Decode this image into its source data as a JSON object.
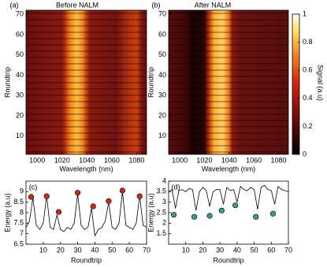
{
  "chart_data": [
    {
      "type": "heatmap",
      "label": "(a)",
      "title": "Before NALM",
      "x_label": "Wavelength (nm)",
      "y_label": "Roundtrip",
      "xlim": [
        991,
        1088
      ],
      "xticks": [
        1000,
        1020,
        1040,
        1060,
        1080
      ],
      "ylim": [
        1,
        72
      ],
      "yticks": [
        10,
        20,
        30,
        40,
        50,
        60,
        70
      ]
    },
    {
      "type": "heatmap",
      "label": "(b)",
      "title": "After NALM",
      "x_label": "Wavelength (nm)",
      "y_label": "Roundtrip",
      "xlim": [
        991,
        1088
      ],
      "xticks": [
        1000,
        1020,
        1040,
        1060,
        1080
      ],
      "ylim": [
        1,
        72
      ],
      "yticks": [
        10,
        20,
        30,
        40,
        50,
        60,
        70
      ],
      "colorbar": {
        "label": "Signal (a.u)",
        "lim": [
          0,
          1
        ],
        "ticks": [
          0,
          0.2,
          0.4,
          0.6,
          0.8,
          1
        ]
      }
    },
    {
      "type": "line",
      "label": "(c)",
      "x_label": "Roundtrip",
      "y_label": "Energy (a.u)",
      "color": "#000000",
      "xlim": [
        0,
        70
      ],
      "xticks": [
        10,
        20,
        30,
        40,
        50,
        60,
        70
      ],
      "ylim": [
        6.5,
        9.5
      ],
      "yticks": [
        6.5,
        7,
        7.5,
        8,
        8.5,
        9
      ],
      "x": [
        0,
        2,
        4,
        6,
        8,
        10,
        12,
        14,
        16,
        18,
        20,
        22,
        24,
        26,
        28,
        30,
        32,
        34,
        36,
        38,
        40,
        42,
        44,
        46,
        48,
        50,
        52,
        54,
        56,
        58,
        60,
        62,
        64,
        66,
        68,
        70
      ],
      "values": [
        7.3,
        7.6,
        8.7,
        7.4,
        7.2,
        7.5,
        8.8,
        7.3,
        7.2,
        7.9,
        7.2,
        7.1,
        7.3,
        7.2,
        7.5,
        8.9,
        7.4,
        7.2,
        7.3,
        8.2,
        6.9,
        7.2,
        7.3,
        7.6,
        8.5,
        7.3,
        7.2,
        7.5,
        9.0,
        7.4,
        7.3,
        7.2,
        7.5,
        8.8,
        7.4,
        7.3
      ],
      "markers": {
        "color": "#cc2a1a",
        "x": [
          3,
          12,
          19,
          30,
          39,
          48,
          56,
          66
        ],
        "values": [
          8.75,
          8.78,
          8.03,
          8.95,
          8.3,
          8.55,
          9.05,
          8.78
        ]
      }
    },
    {
      "type": "line",
      "label": "(d)",
      "x_label": "Roundtrip",
      "y_label": "Energy (a.u)",
      "color": "#000000",
      "xlim": [
        0,
        70
      ],
      "xticks": [
        10,
        20,
        30,
        40,
        50,
        60,
        70
      ],
      "ylim": [
        1,
        4
      ],
      "yticks": [
        1.5,
        2,
        2.5,
        3,
        3.5,
        4
      ],
      "x": [
        0,
        2,
        4,
        6,
        8,
        10,
        12,
        14,
        16,
        18,
        20,
        22,
        24,
        26,
        28,
        30,
        32,
        34,
        36,
        38,
        40,
        42,
        44,
        46,
        48,
        50,
        52,
        54,
        56,
        58,
        60,
        62,
        64,
        66,
        68,
        70
      ],
      "values": [
        3.5,
        3.6,
        2.7,
        3.55,
        3.6,
        3.5,
        3.65,
        3.6,
        2.6,
        3.5,
        3.7,
        3.55,
        2.8,
        3.5,
        3.6,
        3.6,
        2.9,
        3.7,
        3.55,
        3.6,
        3.0,
        3.75,
        3.6,
        3.55,
        3.7,
        3.6,
        2.65,
        3.7,
        3.8,
        3.6,
        3.55,
        2.9,
        3.75,
        3.6,
        3.55,
        3.5
      ],
      "markers": {
        "color": "#3a9a94",
        "x": [
          3,
          15,
          24,
          31,
          39,
          51,
          61
        ],
        "values": [
          2.4,
          2.3,
          2.35,
          2.6,
          2.85,
          2.3,
          2.45
        ]
      }
    }
  ]
}
